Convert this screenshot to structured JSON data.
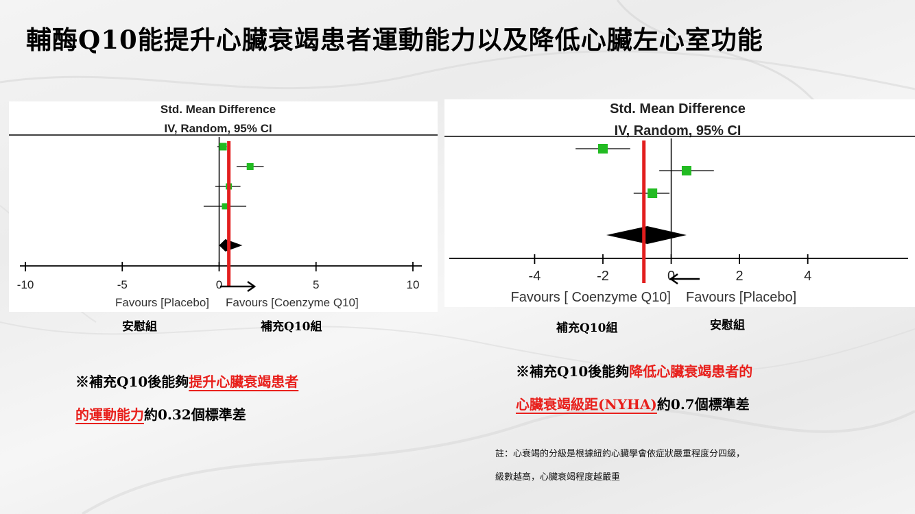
{
  "slide": {
    "title": "輔酶Q10能提升心臟衰竭患者運動能力以及降低心臟左心室功能"
  },
  "colors": {
    "marker": "#22bb22",
    "pooled_line": "#e21d1d",
    "highlight_text": "#e8201c",
    "diamond": "#000000",
    "axis": "#000000"
  },
  "chart_data": [
    {
      "type": "forest",
      "header_line1": "Std. Mean Difference",
      "header_line2": "IV, Random, 95% CI",
      "xlim": [
        -10,
        10
      ],
      "ticks": [
        -10,
        -5,
        0,
        5,
        10
      ],
      "tick_labels": [
        "-10",
        "-5",
        "0",
        "5",
        "10"
      ],
      "favours_left": "Favours [Placebo]",
      "favours_right": "Favours [Coenzyme Q10]",
      "group_left": "安慰組",
      "group_right": "補充Q10組",
      "arrow_direction": "right",
      "studies": [
        {
          "est": 0.2,
          "lo": -0.1,
          "hi": 0.4
        },
        {
          "est": 1.6,
          "lo": 0.9,
          "hi": 2.3
        },
        {
          "est": 0.5,
          "lo": -0.2,
          "hi": 1.1
        },
        {
          "est": 0.3,
          "lo": -0.8,
          "hi": 1.4
        }
      ],
      "pooled": {
        "est": 0.32,
        "lo": 0.0,
        "hi": 1.2
      },
      "pooled_line_x": 0.5
    },
    {
      "type": "forest",
      "header_line1": "Std. Mean Difference",
      "header_line2": "IV, Random, 95% CI",
      "xlim": [
        -6.5,
        7.0
      ],
      "ticks": [
        -4,
        -2,
        0,
        2,
        4
      ],
      "tick_labels": [
        "-4",
        "-2",
        "0",
        "2",
        "4"
      ],
      "favours_left": "Favours [ Coenzyme Q10]",
      "favours_right": "Favours [Placebo]",
      "group_left": "補充Q10組",
      "group_right": "安慰組",
      "arrow_direction": "left",
      "studies": [
        {
          "est": -2.0,
          "lo": -2.8,
          "hi": -1.2
        },
        {
          "est": 0.45,
          "lo": -0.35,
          "hi": 1.25
        },
        {
          "est": -0.55,
          "lo": -1.1,
          "hi": -0.05
        }
      ],
      "pooled": {
        "est": -0.7,
        "lo": -1.9,
        "hi": 0.45
      },
      "pooled_line_x": -0.8
    }
  ],
  "conclusions": {
    "left": {
      "prefix": "※補充Q10後能夠",
      "highlight_line1": "提升心臟衰竭患者",
      "highlight_line2": "的運動能力",
      "suffix": "約0.32個標準差"
    },
    "right": {
      "prefix": "※補充Q10後能夠",
      "highlight_line1": "降低心臟衰竭患者的",
      "highlight_line2": "心臟衰竭級距(NYHA)",
      "suffix": "約0.7個標準差"
    }
  },
  "note": {
    "line1": "註：心衰竭的分級是根據紐約心臟學會依症狀嚴重程度分四級，",
    "line2": "級數越高，心臟衰竭程度越嚴重"
  }
}
